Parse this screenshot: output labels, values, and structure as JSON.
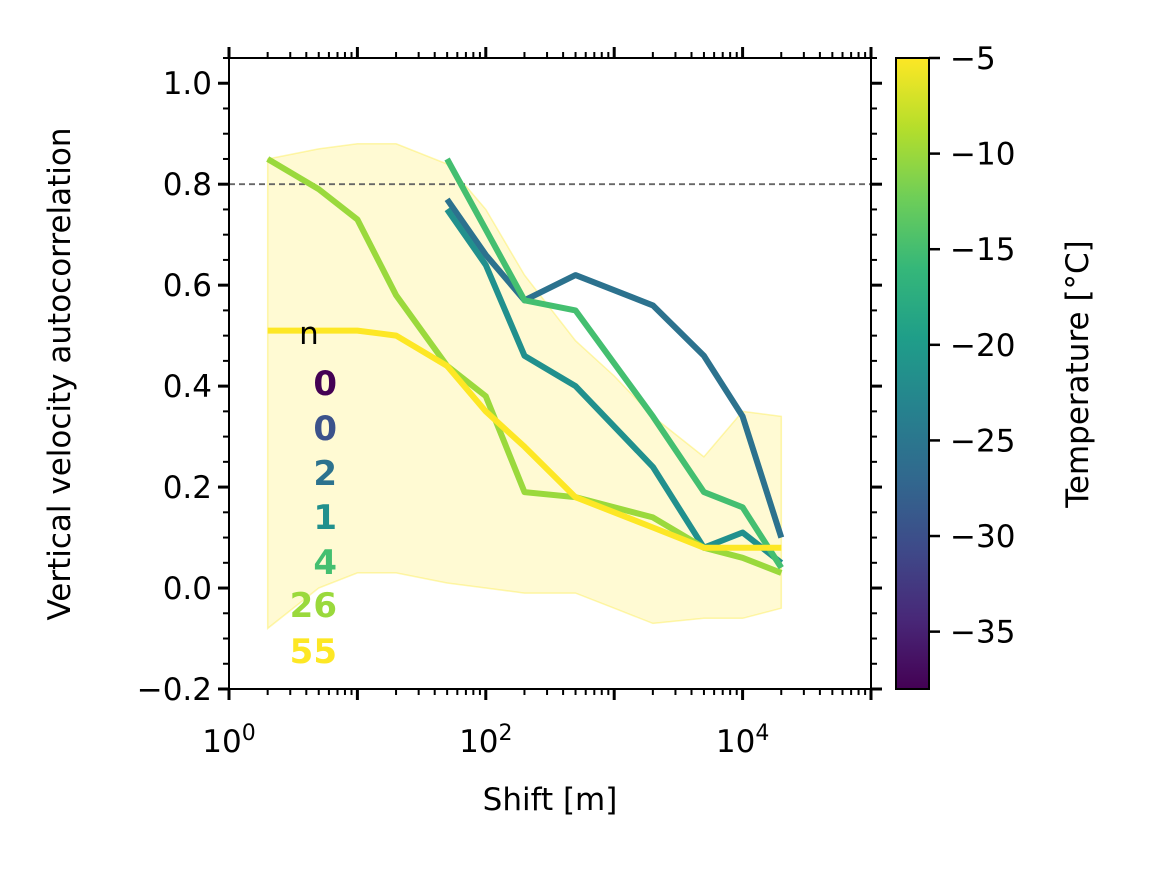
{
  "chart_data": {
    "type": "line",
    "xscale": "log",
    "xlim": [
      1,
      100000
    ],
    "ylim": [
      -0.2,
      1.05
    ],
    "xlabel": "Shift [m]",
    "ylabel": "Vertical velocity autocorrelation",
    "x_ticks": [
      {
        "value": 1,
        "base": "10",
        "exp": "0"
      },
      {
        "value": 100,
        "base": "10",
        "exp": "2"
      },
      {
        "value": 10000,
        "base": "10",
        "exp": "4"
      }
    ],
    "y_ticks": [
      "−0.2",
      "0.0",
      "0.2",
      "0.4",
      "0.6",
      "0.8",
      "1.0"
    ],
    "y_tick_values": [
      -0.2,
      0.0,
      0.2,
      0.4,
      0.6,
      0.8,
      1.0
    ],
    "reference_line": {
      "y": 0.8,
      "style": "dashed",
      "color": "#666666"
    },
    "shaded_band": {
      "color": "#fde725",
      "x": [
        2,
        5,
        10,
        20,
        50,
        100,
        200,
        500,
        1000,
        2000,
        5000,
        10000,
        20000
      ],
      "upper": [
        0.85,
        0.87,
        0.88,
        0.88,
        0.84,
        0.75,
        0.62,
        0.49,
        0.42,
        0.34,
        0.26,
        0.35,
        0.34
      ],
      "lower": [
        -0.08,
        0.0,
        0.03,
        0.03,
        0.01,
        0.0,
        -0.01,
        -0.01,
        -0.04,
        -0.07,
        -0.06,
        -0.06,
        -0.04
      ]
    },
    "series": [
      {
        "color": "#2c728e",
        "x": [
          50,
          100,
          200,
          500,
          2000,
          5000,
          10000,
          20000
        ],
        "y": [
          0.77,
          0.66,
          0.57,
          0.62,
          0.56,
          0.46,
          0.34,
          0.1
        ]
      },
      {
        "color": "#21908d",
        "x": [
          50,
          100,
          200,
          500,
          2000,
          5000,
          10000,
          20000
        ],
        "y": [
          0.75,
          0.64,
          0.46,
          0.4,
          0.24,
          0.08,
          0.11,
          0.05
        ]
      },
      {
        "color": "#44bf70",
        "x": [
          50,
          100,
          200,
          500,
          2000,
          5000,
          10000,
          20000
        ],
        "y": [
          0.85,
          0.71,
          0.57,
          0.55,
          0.34,
          0.19,
          0.16,
          0.04
        ]
      },
      {
        "color": "#9ad93c",
        "x": [
          2,
          5,
          10,
          20,
          50,
          100,
          200,
          500,
          2000,
          5000,
          10000,
          20000
        ],
        "y": [
          0.85,
          0.79,
          0.73,
          0.58,
          0.44,
          0.38,
          0.19,
          0.18,
          0.14,
          0.08,
          0.06,
          0.03
        ]
      },
      {
        "color": "#fde725",
        "x": [
          2,
          5,
          10,
          20,
          50,
          100,
          200,
          500,
          2000,
          5000,
          10000,
          20000
        ],
        "y": [
          0.51,
          0.51,
          0.51,
          0.5,
          0.44,
          0.35,
          0.28,
          0.18,
          0.12,
          0.08,
          0.08,
          0.08
        ]
      }
    ],
    "counts_header": "n",
    "counts": [
      {
        "label": "0",
        "color": "#440154"
      },
      {
        "label": "0",
        "color": "#3b528b"
      },
      {
        "label": "2",
        "color": "#2c728e"
      },
      {
        "label": "1",
        "color": "#21908d"
      },
      {
        "label": "4",
        "color": "#44bf70"
      },
      {
        "label": "26",
        "color": "#9ad93c"
      },
      {
        "label": "55",
        "color": "#fde725"
      }
    ],
    "colorbar": {
      "label": "Temperature [°C]",
      "range": [
        -38,
        -5
      ],
      "colormap": "viridis",
      "ticks": [
        "−5",
        "−10",
        "−15",
        "−20",
        "−25",
        "−30",
        "−35"
      ],
      "tick_values": [
        -5,
        -10,
        -15,
        -20,
        -25,
        -30,
        -35
      ]
    }
  }
}
